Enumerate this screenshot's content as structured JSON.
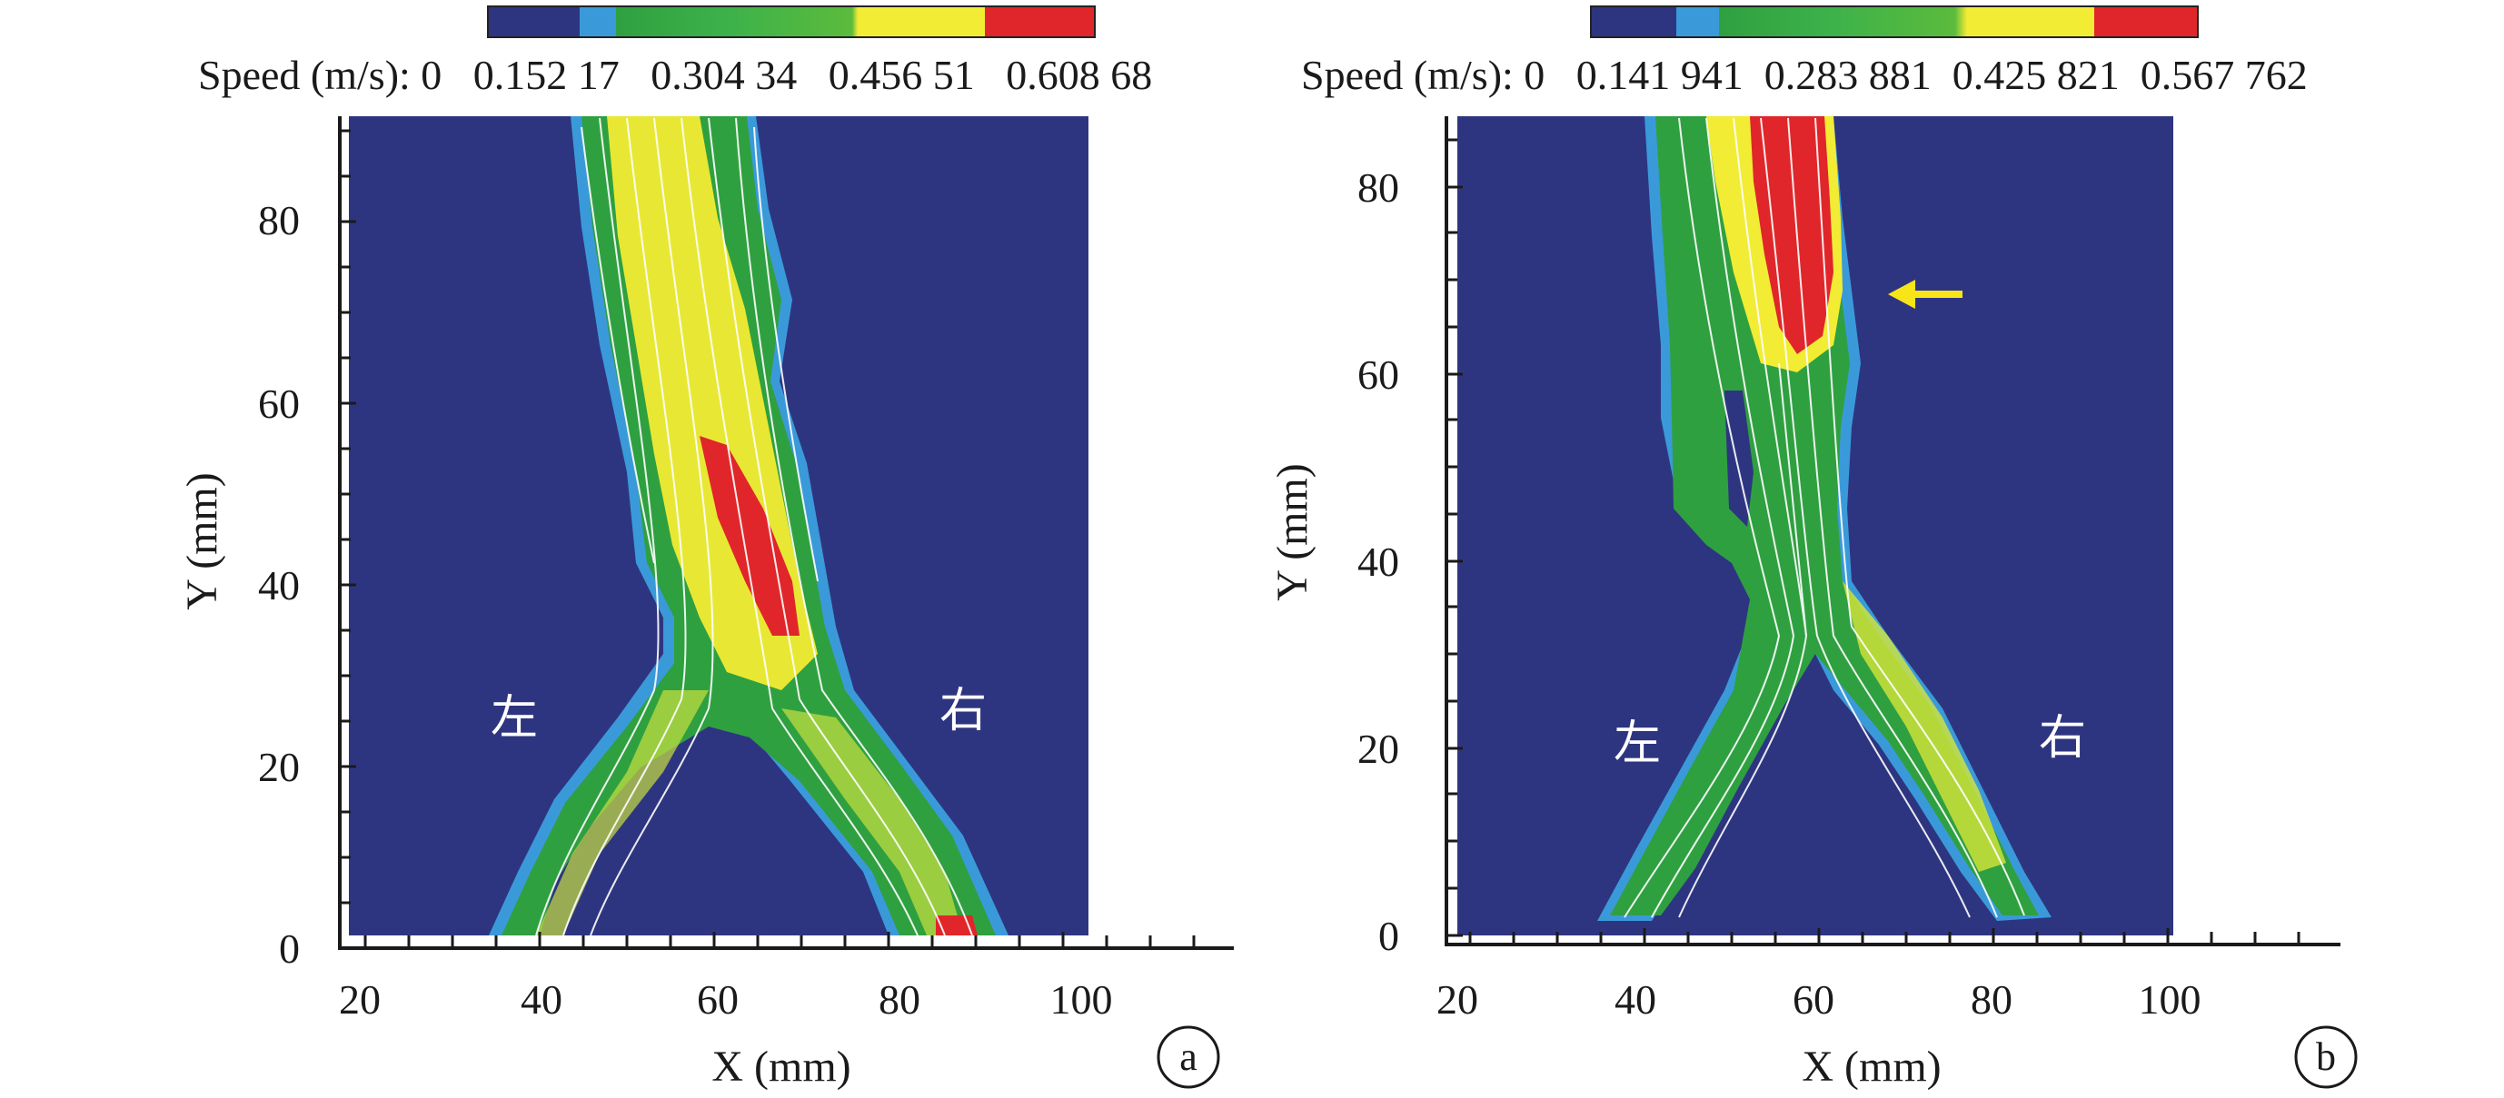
{
  "panels": [
    {
      "id": "a",
      "label": "a",
      "colorbar_title": "Speed (m/s):",
      "colorbar_ticks": "0   0.152 17   0.304 34   0.456 51   0.608 68",
      "x_axis_title": "X (mm)",
      "y_axis_title": "Y (mm)",
      "x_ticks": [
        "20",
        "40",
        "60",
        "80",
        "100"
      ],
      "y_ticks": [
        "0",
        "20",
        "40",
        "60",
        "80"
      ],
      "left_branch_label": "左",
      "right_branch_label": "右"
    },
    {
      "id": "b",
      "label": "b",
      "colorbar_title": "Speed (m/s):",
      "colorbar_ticks": "0   0.141 941  0.283 881  0.425 821  0.567 762",
      "x_axis_title": "X (mm)",
      "y_axis_title": "Y (mm)",
      "x_ticks": [
        "20",
        "40",
        "60",
        "80",
        "100"
      ],
      "y_ticks": [
        "0",
        "20",
        "40",
        "60",
        "80"
      ],
      "left_branch_label": "左",
      "right_branch_label": "右"
    }
  ],
  "colors": {
    "background_field": "#2e3580",
    "low": "#3a9ad9",
    "mid": "#2fa040",
    "high": "#f2ec34",
    "peak": "#e0262a",
    "annotation_arrow": "#f7e51a"
  }
}
